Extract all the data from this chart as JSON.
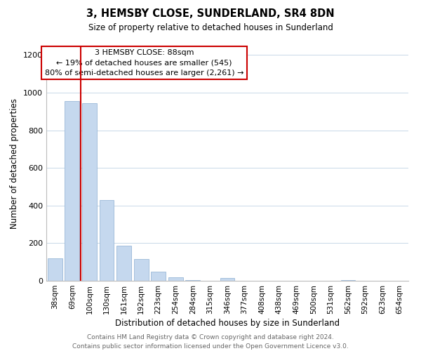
{
  "title": "3, HEMSBY CLOSE, SUNDERLAND, SR4 8DN",
  "subtitle": "Size of property relative to detached houses in Sunderland",
  "xlabel": "Distribution of detached houses by size in Sunderland",
  "ylabel": "Number of detached properties",
  "bar_labels": [
    "38sqm",
    "69sqm",
    "100sqm",
    "130sqm",
    "161sqm",
    "192sqm",
    "223sqm",
    "254sqm",
    "284sqm",
    "315sqm",
    "346sqm",
    "377sqm",
    "408sqm",
    "438sqm",
    "469sqm",
    "500sqm",
    "531sqm",
    "562sqm",
    "592sqm",
    "623sqm",
    "654sqm"
  ],
  "bar_values": [
    120,
    955,
    945,
    430,
    185,
    115,
    47,
    18,
    5,
    0,
    15,
    0,
    0,
    0,
    0,
    0,
    0,
    5,
    0,
    0,
    0
  ],
  "bar_color": "#c5d8ee",
  "bar_edge_color": "#9ab8d8",
  "ylim": [
    0,
    1250
  ],
  "yticks": [
    0,
    200,
    400,
    600,
    800,
    1000,
    1200
  ],
  "property_line_x": 1.5,
  "property_line_color": "#cc0000",
  "annotation_line1": "3 HEMSBY CLOSE: 88sqm",
  "annotation_line2": "← 19% of detached houses are smaller (545)",
  "annotation_line3": "80% of semi-detached houses are larger (2,261) →",
  "footer_line1": "Contains HM Land Registry data © Crown copyright and database right 2024.",
  "footer_line2": "Contains public sector information licensed under the Open Government Licence v3.0.",
  "background_color": "#ffffff",
  "grid_color": "#c8d8e8",
  "title_fontsize": 10.5,
  "subtitle_fontsize": 8.5,
  "ylabel_fontsize": 8.5,
  "xlabel_fontsize": 8.5,
  "tick_fontsize": 7.5,
  "footer_fontsize": 6.5,
  "ann_fontsize": 8.0
}
